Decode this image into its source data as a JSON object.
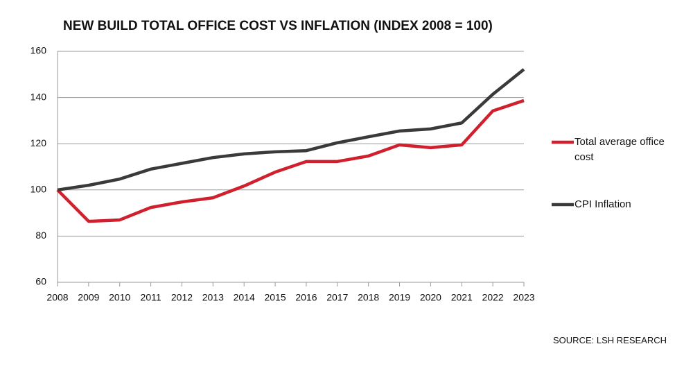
{
  "chart_data": {
    "type": "line",
    "title": "NEW BUILD TOTAL OFFICE COST VS INFLATION (INDEX 2008 = 100)",
    "source": "SOURCE: LSH RESEARCH",
    "categories": [
      "2008",
      "2009",
      "2010",
      "2011",
      "2012",
      "2013",
      "2014",
      "2015",
      "2016",
      "2017",
      "2018",
      "2019",
      "2020",
      "2021",
      "2022",
      "2023"
    ],
    "series": [
      {
        "name": "Total average office cost",
        "color": "#d0202e",
        "values": [
          100,
          86.4,
          87,
          92.4,
          94.8,
          96.6,
          101.7,
          107.7,
          112.3,
          112.3,
          114.7,
          119.5,
          118.3,
          119.5,
          134.2,
          138.7
        ]
      },
      {
        "name": "CPI Inflation",
        "color": "#3a3a38",
        "values": [
          100,
          102,
          104.7,
          109,
          111.5,
          114,
          115.6,
          116.5,
          117,
          120.4,
          123,
          125.5,
          126.4,
          129,
          141.4,
          152.2
        ]
      }
    ],
    "ylim": [
      60,
      160
    ],
    "yticks": [
      60,
      80,
      100,
      120,
      140,
      160
    ],
    "grid": true
  }
}
